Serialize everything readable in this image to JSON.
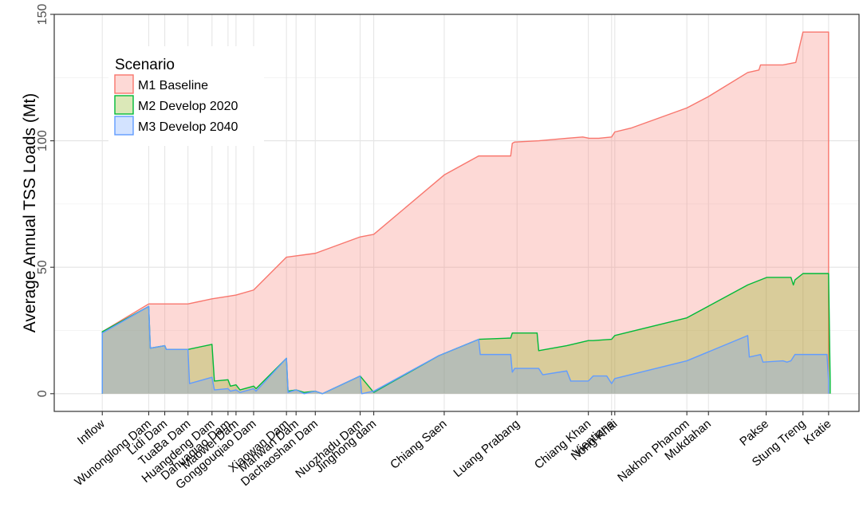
{
  "chart_data": {
    "type": "area",
    "ylabel": "Average Annual TSS Loads (Mt)",
    "xlabel": "",
    "ylim": [
      -7,
      150
    ],
    "y_ticks": [
      0,
      50,
      100,
      150
    ],
    "grid": true,
    "legend": {
      "title": "Scenario",
      "placement": "top-left",
      "entries": [
        "M1 Baseline",
        "M2 Develop 2020",
        "M3 Develop 2040"
      ]
    },
    "categories": [
      "Inflow",
      "Wunonglong Dam",
      "Lidi Dam",
      "TuaBa Dam",
      "Huangdeng Dam",
      "Dahuaqiao Dam",
      "Maowei Dam",
      "Gonggouqiao Dam",
      "Xiaowan Dam",
      "Manwan Dam",
      "Dachaoshan Dam",
      "Nuozhadu Dam",
      "Jinghong dam",
      "Chiang Saen",
      "Luang Prabang",
      "Chiang Khan",
      "Vientiane",
      "Nong Khai",
      "Nakhon Phanom",
      "Mukdahan",
      "Pakse",
      "Stung Treng",
      "Kratie"
    ],
    "x_positions_km": [
      0,
      58,
      78,
      107,
      137,
      157,
      167,
      189,
      230,
      242,
      266,
      322,
      339,
      427,
      518,
      607,
      636,
      640,
      730,
      757,
      829,
      875,
      907
    ],
    "x_range_km": [
      -60,
      945
    ],
    "series": [
      {
        "name": "M1 Baseline",
        "color": "#f8766d",
        "fill": "#f8766d",
        "x": [
          0,
          58,
          78,
          107,
          137,
          157,
          167,
          189,
          230,
          242,
          266,
          322,
          339,
          427,
          470,
          510,
          512,
          515,
          545,
          580,
          600,
          608,
          620,
          636,
          640,
          660,
          730,
          757,
          806,
          820,
          822,
          850,
          866,
          875,
          907
        ],
        "y": [
          24.5,
          35.5,
          35.5,
          35.5,
          37.5,
          38.5,
          39,
          41,
          54,
          54.5,
          55.5,
          62,
          63,
          86.5,
          94,
          94,
          99,
          99.5,
          100,
          101,
          101.5,
          101,
          101,
          101.5,
          103.5,
          105,
          113,
          117.5,
          127,
          128,
          130,
          130,
          131,
          143,
          143
        ]
      },
      {
        "name": "M2 Develop 2020",
        "color": "#00ba38",
        "fill": "#7cae00",
        "x": [
          0,
          58,
          60,
          78,
          80,
          107,
          137,
          140,
          157,
          160,
          167,
          172,
          189,
          192,
          230,
          232,
          242,
          252,
          266,
          275,
          322,
          339,
          420,
          470,
          510,
          512,
          543,
          545,
          580,
          607,
          613,
          636,
          640,
          730,
          806,
          830,
          850,
          860,
          863,
          865,
          875,
          907,
          909
        ],
        "y": [
          24.5,
          34.5,
          18,
          19,
          17.5,
          17.5,
          19.5,
          5,
          5.5,
          3,
          3.5,
          1.5,
          3,
          2,
          14,
          1,
          1.5,
          0.5,
          1,
          0,
          7,
          0.5,
          15,
          21.5,
          22,
          24,
          24,
          17,
          19,
          21,
          21,
          21.5,
          23,
          30,
          43,
          46,
          46,
          46,
          43,
          45,
          47.5,
          47.5,
          5
        ]
      },
      {
        "name": "M3 Develop 2040",
        "color": "#619cff",
        "fill": "#619cff",
        "x": [
          0,
          58,
          60,
          78,
          80,
          107,
          109,
          137,
          140,
          157,
          160,
          167,
          172,
          189,
          192,
          230,
          232,
          242,
          252,
          266,
          275,
          322,
          324,
          339,
          420,
          470,
          472,
          510,
          512,
          515,
          518,
          545,
          550,
          580,
          585,
          607,
          613,
          630,
          636,
          640,
          730,
          806,
          808,
          822,
          825,
          850,
          855,
          860,
          865,
          875,
          905,
          907
        ],
        "y": [
          24,
          34.5,
          18,
          19,
          17.5,
          17.5,
          4,
          6.5,
          1.5,
          2,
          1,
          1.5,
          0.5,
          2,
          1,
          14,
          0.5,
          1.5,
          0,
          1,
          0,
          7,
          0,
          1,
          15,
          21.5,
          15.5,
          15.5,
          8.5,
          10,
          10,
          10,
          7.5,
          9,
          5,
          5,
          7,
          7,
          4,
          6,
          13,
          23,
          14.5,
          15.5,
          12.5,
          13,
          12.5,
          13,
          15.5,
          15.5,
          15.5,
          5
        ]
      }
    ]
  }
}
